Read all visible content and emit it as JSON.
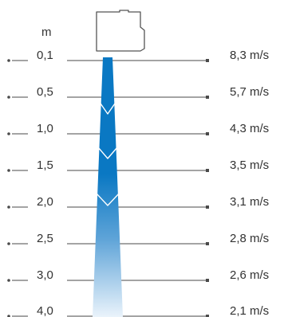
{
  "unit": "m",
  "rows": [
    {
      "distance": "0,1",
      "speed": "8,3 m/s"
    },
    {
      "distance": "0,5",
      "speed": "5,7 m/s"
    },
    {
      "distance": "1,0",
      "speed": "4,3 m/s"
    },
    {
      "distance": "1,5",
      "speed": "3,5 m/s"
    },
    {
      "distance": "2,0",
      "speed": "3,1 m/s"
    },
    {
      "distance": "2,5",
      "speed": "2,8 m/s"
    },
    {
      "distance": "3,0",
      "speed": "2,6 m/s"
    },
    {
      "distance": "4,0",
      "speed": "2,1 m/s"
    }
  ],
  "colors": {
    "beam_top": "#0a78c3",
    "beam_bottom": "#eaf3fb",
    "line": "#4a4a4a",
    "text": "#333333"
  }
}
